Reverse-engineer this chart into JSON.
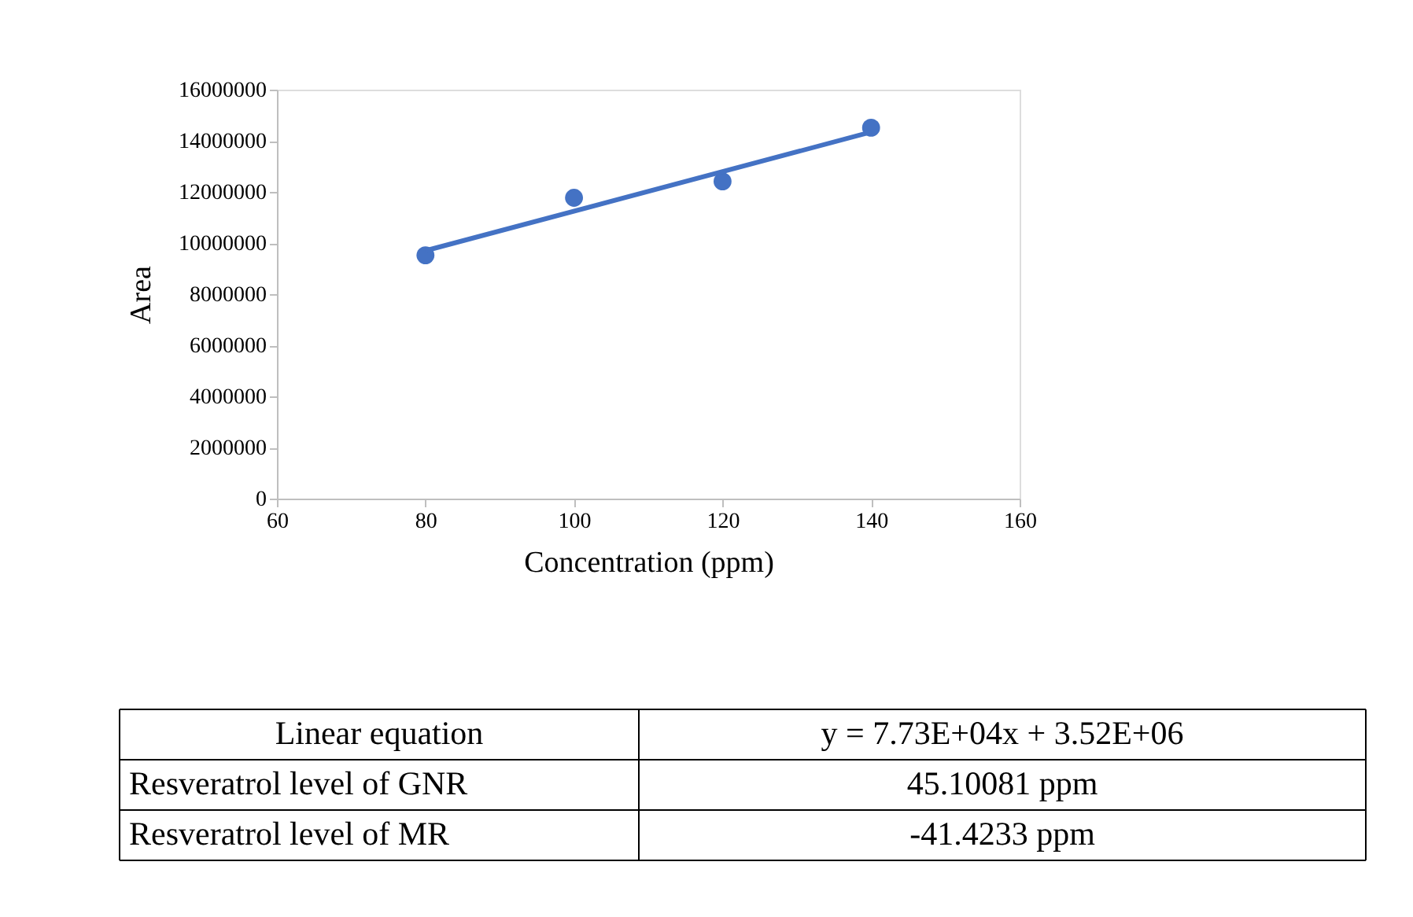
{
  "chart_data": {
    "type": "scatter",
    "xlabel": "Concentration (ppm)",
    "ylabel": "Area",
    "x": [
      80,
      100,
      120,
      140
    ],
    "series": [
      {
        "color": "#4472c4",
        "values": [
          9520000,
          11770000,
          12410000,
          14510000
        ],
        "marker": "circle"
      },
      {
        "type": "line",
        "color": "#4472c4",
        "x": [
          80,
          140
        ],
        "values": [
          9700000,
          14340000
        ],
        "line_style": "solid"
      }
    ],
    "xlim": [
      60,
      160
    ],
    "xticks": [
      60,
      80,
      100,
      120,
      140,
      160
    ],
    "ylim": [
      0,
      16000000
    ],
    "yticks": [
      0,
      2000000,
      4000000,
      6000000,
      8000000,
      10000000,
      12000000,
      14000000,
      16000000
    ],
    "grid": false,
    "annotations": [
      "Linear equation",
      "y = 7.73E+04x + 3.52E+06",
      "Resveratrol level of GNR",
      "45.10081 ppm",
      "Resveratrol level of MR",
      "-41.4233 ppm"
    ]
  }
}
